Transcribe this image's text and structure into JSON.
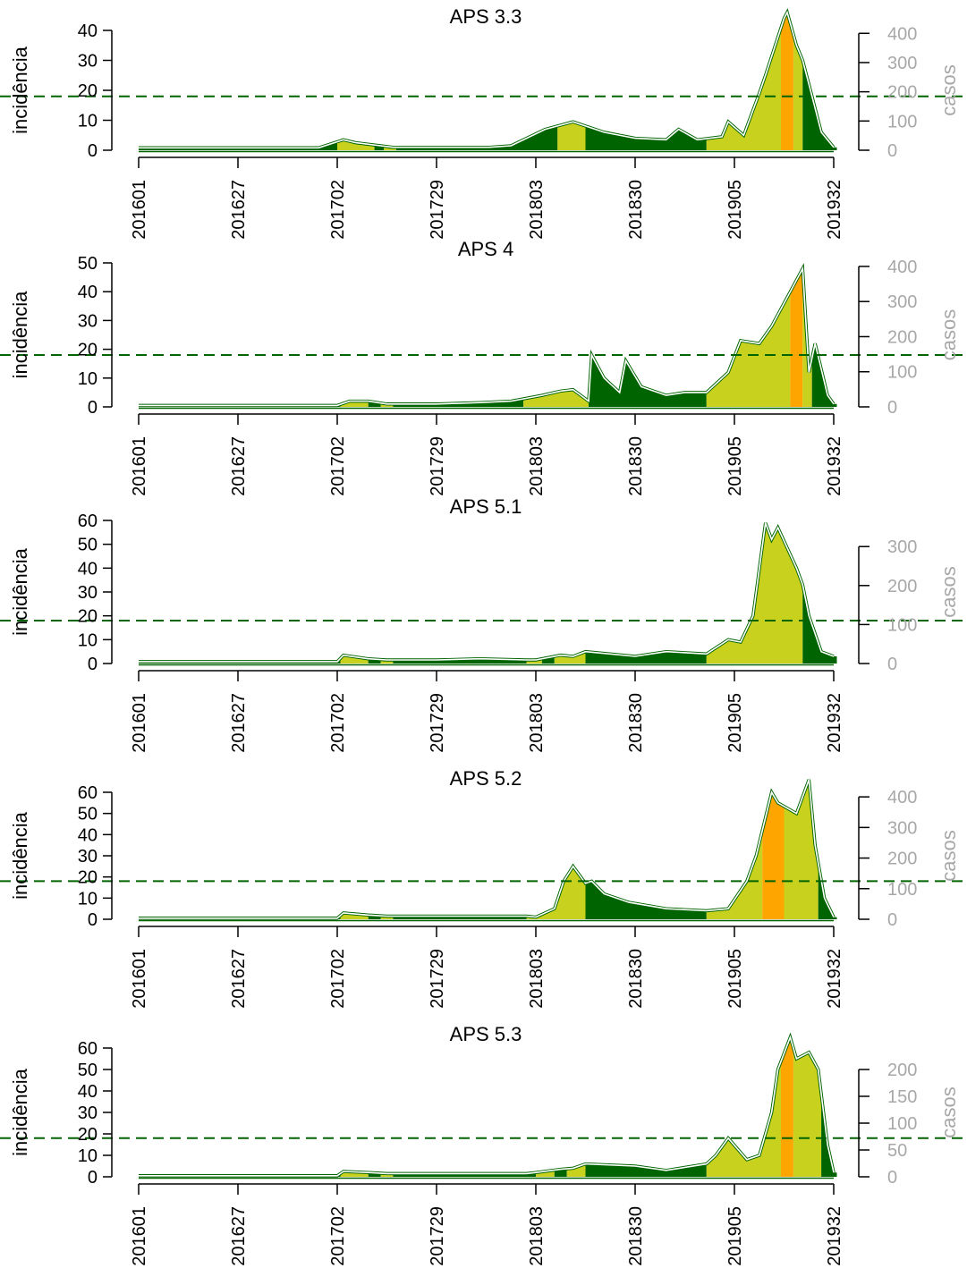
{
  "colors": {
    "green": "#006400",
    "yellow": "#c8d21e",
    "orange": "#ffa500",
    "outline": "#ffffff",
    "threshold": "#006400",
    "right_axis": "#a8a8a8"
  },
  "x_tick_labels": [
    "201601",
    "201627",
    "201702",
    "201729",
    "201803",
    "201830",
    "201905",
    "201932"
  ],
  "chart_data": [
    {
      "type": "area",
      "title": "APS 3.3",
      "ylabel": "incidência",
      "y2label": "casos",
      "ylim": [
        0,
        40
      ],
      "yticks": [
        0,
        10,
        20,
        30,
        40
      ],
      "y2ticks": [
        0,
        100,
        200,
        300,
        400
      ],
      "y2max_at_ytop": 410,
      "threshold": 18,
      "x_weeks": [
        0,
        30,
        58,
        66,
        70,
        78,
        82,
        96,
        100,
        108,
        113,
        120,
        131,
        140,
        150,
        160,
        170,
        174,
        180,
        188,
        190,
        195,
        200,
        202,
        208,
        209,
        212,
        214,
        216,
        220,
        224
      ],
      "values": [
        0.8,
        0.8,
        0.8,
        3.5,
        2.5,
        1.5,
        1,
        1,
        1,
        1,
        1,
        1.5,
        7,
        9.5,
        6,
        4,
        3.5,
        7,
        3.5,
        4.5,
        9.5,
        5,
        19,
        25,
        44,
        46,
        35,
        30,
        22,
        6,
        1
      ],
      "color_segments": [
        {
          "start": 0,
          "end": 64,
          "level": "green"
        },
        {
          "start": 64,
          "end": 76,
          "level": "yellow"
        },
        {
          "start": 76,
          "end": 79,
          "level": "green"
        },
        {
          "start": 79,
          "end": 83,
          "level": "yellow"
        },
        {
          "start": 83,
          "end": 135,
          "level": "green"
        },
        {
          "start": 135,
          "end": 144,
          "level": "yellow"
        },
        {
          "start": 144,
          "end": 183,
          "level": "green"
        },
        {
          "start": 183,
          "end": 207,
          "level": "yellow"
        },
        {
          "start": 207,
          "end": 211,
          "level": "orange"
        },
        {
          "start": 211,
          "end": 214,
          "level": "yellow"
        },
        {
          "start": 214,
          "end": 225,
          "level": "green"
        }
      ]
    },
    {
      "type": "area",
      "title": "APS 4",
      "ylabel": "incidência",
      "y2label": "casos",
      "ylim": [
        0,
        50
      ],
      "yticks": [
        0,
        10,
        20,
        30,
        40,
        50
      ],
      "y2ticks": [
        0,
        100,
        200,
        300,
        400
      ],
      "y2max_at_ytop": 410,
      "threshold": 18,
      "x_weeks": [
        0,
        30,
        64,
        68,
        74,
        80,
        96,
        110,
        120,
        130,
        136,
        140,
        145,
        146,
        150,
        155,
        157,
        162,
        170,
        176,
        183,
        190,
        194,
        200,
        204,
        210,
        214,
        216,
        218,
        222,
        224
      ],
      "values": [
        0.5,
        0.5,
        0.5,
        2,
        2,
        1,
        1,
        1.5,
        2,
        4,
        5.5,
        6,
        2,
        18,
        10,
        5,
        16,
        7,
        4,
        5,
        5,
        12,
        23,
        22,
        28,
        40,
        48,
        12,
        22,
        4,
        1
      ],
      "color_segments": [
        {
          "start": 0,
          "end": 65,
          "level": "green"
        },
        {
          "start": 65,
          "end": 74,
          "level": "yellow"
        },
        {
          "start": 74,
          "end": 78,
          "level": "green"
        },
        {
          "start": 78,
          "end": 82,
          "level": "yellow"
        },
        {
          "start": 82,
          "end": 124,
          "level": "green"
        },
        {
          "start": 124,
          "end": 145,
          "level": "yellow"
        },
        {
          "start": 145,
          "end": 183,
          "level": "green"
        },
        {
          "start": 183,
          "end": 210,
          "level": "yellow"
        },
        {
          "start": 210,
          "end": 214,
          "level": "orange"
        },
        {
          "start": 214,
          "end": 217,
          "level": "yellow"
        },
        {
          "start": 217,
          "end": 225,
          "level": "green"
        }
      ]
    },
    {
      "type": "area",
      "title": "APS 5.1",
      "ylabel": "incidência",
      "y2label": "casos",
      "ylim": [
        0,
        60
      ],
      "yticks": [
        0,
        10,
        20,
        30,
        40,
        50,
        60
      ],
      "y2ticks": [
        0,
        100,
        200,
        300
      ],
      "y2max_at_ytop": 367,
      "threshold": 18,
      "x_weeks": [
        0,
        30,
        64,
        66,
        74,
        80,
        96,
        110,
        125,
        128,
        136,
        140,
        144,
        160,
        170,
        183,
        190,
        194,
        198,
        202,
        204,
        206,
        212,
        214,
        216,
        220,
        224
      ],
      "values": [
        0.8,
        0.8,
        0.8,
        3.5,
        2,
        1.5,
        1.5,
        2,
        1.5,
        1.5,
        3.5,
        3,
        5,
        3,
        5,
        4,
        10,
        9,
        20,
        59,
        52,
        57,
        40,
        33,
        20,
        5,
        3
      ],
      "color_segments": [
        {
          "start": 0,
          "end": 65,
          "level": "green"
        },
        {
          "start": 65,
          "end": 74,
          "level": "yellow"
        },
        {
          "start": 74,
          "end": 78,
          "level": "green"
        },
        {
          "start": 78,
          "end": 82,
          "level": "yellow"
        },
        {
          "start": 82,
          "end": 125,
          "level": "green"
        },
        {
          "start": 125,
          "end": 130,
          "level": "yellow"
        },
        {
          "start": 130,
          "end": 134,
          "level": "green"
        },
        {
          "start": 134,
          "end": 144,
          "level": "yellow"
        },
        {
          "start": 144,
          "end": 183,
          "level": "green"
        },
        {
          "start": 183,
          "end": 214,
          "level": "yellow"
        },
        {
          "start": 214,
          "end": 225,
          "level": "green"
        }
      ]
    },
    {
      "type": "area",
      "title": "APS 5.2",
      "ylabel": "incidência",
      "y2label": "casos",
      "ylim": [
        0,
        60
      ],
      "yticks": [
        0,
        10,
        20,
        30,
        40,
        50,
        60
      ],
      "y2ticks": [
        0,
        100,
        200,
        300,
        400
      ],
      "y2max_at_ytop": 415,
      "threshold": 18,
      "x_weeks": [
        0,
        30,
        64,
        66,
        74,
        80,
        96,
        110,
        125,
        128,
        134,
        137,
        140,
        144,
        146,
        150,
        158,
        170,
        183,
        190,
        196,
        199,
        204,
        206,
        212,
        216,
        218,
        221,
        224
      ],
      "values": [
        0.5,
        0.5,
        0.5,
        3,
        2,
        1.5,
        1.5,
        1.5,
        1.5,
        1,
        5,
        18,
        25,
        17,
        18,
        12,
        8,
        5,
        4,
        5,
        18,
        30,
        60,
        55,
        50,
        66,
        35,
        10,
        1
      ],
      "color_segments": [
        {
          "start": 0,
          "end": 65,
          "level": "green"
        },
        {
          "start": 65,
          "end": 74,
          "level": "yellow"
        },
        {
          "start": 74,
          "end": 78,
          "level": "green"
        },
        {
          "start": 78,
          "end": 82,
          "level": "yellow"
        },
        {
          "start": 82,
          "end": 125,
          "level": "green"
        },
        {
          "start": 125,
          "end": 144,
          "level": "yellow"
        },
        {
          "start": 144,
          "end": 183,
          "level": "green"
        },
        {
          "start": 183,
          "end": 201,
          "level": "yellow"
        },
        {
          "start": 201,
          "end": 208,
          "level": "orange"
        },
        {
          "start": 208,
          "end": 219,
          "level": "yellow"
        },
        {
          "start": 219,
          "end": 225,
          "level": "green"
        }
      ]
    },
    {
      "type": "area",
      "title": "APS 5.3",
      "ylabel": "incidência",
      "y2label": "casos",
      "ylim": [
        0,
        60
      ],
      "yticks": [
        0,
        10,
        20,
        30,
        40,
        50,
        60
      ],
      "y2ticks": [
        0,
        50,
        100,
        150,
        200
      ],
      "y2max_at_ytop": 240,
      "threshold": 18,
      "x_weeks": [
        0,
        30,
        64,
        66,
        74,
        80,
        96,
        110,
        125,
        128,
        136,
        140,
        144,
        160,
        170,
        183,
        186,
        190,
        196,
        200,
        204,
        206,
        210,
        212,
        216,
        219,
        222,
        224
      ],
      "values": [
        0.5,
        0.5,
        0.5,
        2.5,
        2,
        1.5,
        1.5,
        1.5,
        1.5,
        2,
        3.5,
        4,
        6,
        5,
        3,
        6,
        10,
        18,
        8,
        10,
        30,
        50,
        65,
        55,
        58,
        50,
        15,
        2
      ],
      "color_segments": [
        {
          "start": 0,
          "end": 65,
          "level": "green"
        },
        {
          "start": 65,
          "end": 74,
          "level": "yellow"
        },
        {
          "start": 74,
          "end": 78,
          "level": "green"
        },
        {
          "start": 78,
          "end": 82,
          "level": "yellow"
        },
        {
          "start": 82,
          "end": 128,
          "level": "green"
        },
        {
          "start": 128,
          "end": 134,
          "level": "yellow"
        },
        {
          "start": 134,
          "end": 138,
          "level": "green"
        },
        {
          "start": 138,
          "end": 144,
          "level": "yellow"
        },
        {
          "start": 144,
          "end": 183,
          "level": "green"
        },
        {
          "start": 183,
          "end": 207,
          "level": "yellow"
        },
        {
          "start": 207,
          "end": 211,
          "level": "orange"
        },
        {
          "start": 211,
          "end": 220,
          "level": "yellow"
        },
        {
          "start": 220,
          "end": 225,
          "level": "green"
        }
      ]
    }
  ]
}
